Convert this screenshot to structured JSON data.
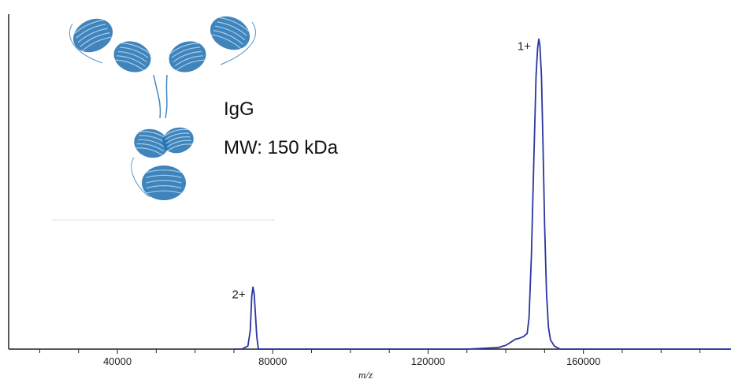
{
  "chart_data": {
    "type": "line",
    "title": "",
    "xlabel": "m/z",
    "ylabel": "",
    "xlim": [
      12000,
      198000
    ],
    "ylim": [
      0,
      1.08
    ],
    "x_ticks": [
      40000,
      80000,
      120000,
      160000
    ],
    "x_tick_labels": [
      "40000",
      "80000",
      "120000",
      "160000"
    ],
    "grid": false,
    "line_color": "#2b35a0",
    "series": [
      {
        "x": [
          70000,
          72000,
          73600,
          74200,
          74600,
          74900,
          75200,
          75500,
          75900,
          76300,
          77000,
          80000,
          100000,
          130000,
          138000,
          140000,
          141500,
          142500,
          143500,
          144500,
          145500,
          146000,
          146600,
          147200,
          147800,
          148200,
          148500,
          148800,
          149200,
          149600,
          150000,
          150500,
          151000,
          151500,
          152500,
          154000,
          158000,
          165000,
          198000
        ],
        "y": [
          0.0,
          0.0,
          0.01,
          0.06,
          0.17,
          0.2,
          0.18,
          0.12,
          0.04,
          0.0,
          0.0,
          0.0,
          0.0,
          0.0,
          0.005,
          0.012,
          0.024,
          0.032,
          0.035,
          0.04,
          0.05,
          0.1,
          0.3,
          0.6,
          0.88,
          0.97,
          1.0,
          0.98,
          0.88,
          0.65,
          0.4,
          0.18,
          0.07,
          0.03,
          0.01,
          0.0,
          0.0,
          0.0,
          0.0
        ]
      }
    ],
    "annotations": [
      {
        "text": "2+",
        "x": 75000
      },
      {
        "text": "1+",
        "x": 148500
      }
    ]
  },
  "inset": {
    "name_label": "IgG",
    "mw_label": "MW: 150 kDa",
    "structure_color": "#1f6fb0"
  }
}
